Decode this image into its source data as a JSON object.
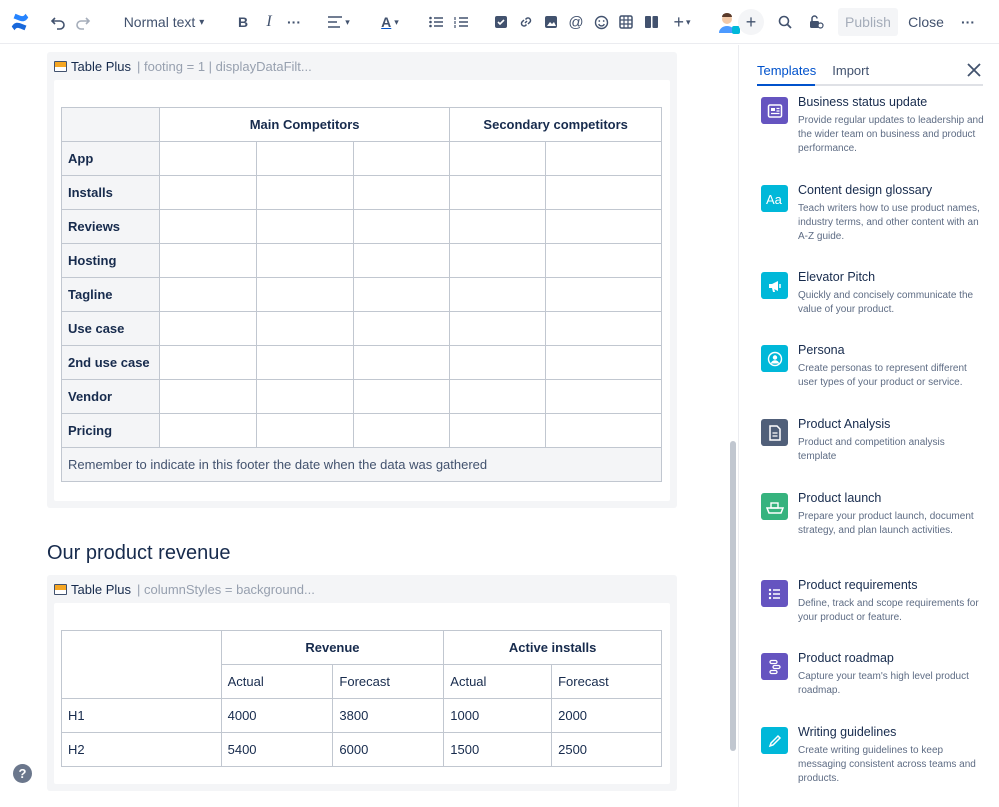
{
  "toolbar": {
    "text_style": "Normal text",
    "publish_label": "Publish",
    "close_label": "Close"
  },
  "macro1": {
    "name": "Table Plus",
    "params": "| footing = 1 | displayDataFilt...",
    "header": {
      "main": "Main Competitors",
      "secondary": "Secondary competitors"
    },
    "rows": [
      "App",
      "Installs",
      "Reviews",
      "Hosting",
      "Tagline",
      "Use case",
      "2nd use case",
      "Vendor",
      "Pricing"
    ],
    "footer": "Remember to indicate in this footer the date when the data was gathered"
  },
  "section_title": "Our product revenue",
  "macro2": {
    "name": "Table Plus",
    "params": "| columnStyles = background...",
    "groups": {
      "revenue": "Revenue",
      "installs": "Active installs"
    },
    "sub": [
      "Actual",
      "Forecast",
      "Actual",
      "Forecast"
    ],
    "rows": [
      {
        "label": "H1",
        "cells": [
          "4000",
          "3800",
          "1000",
          "2000"
        ]
      },
      {
        "label": "H2",
        "cells": [
          "5400",
          "6000",
          "1500",
          "2500"
        ]
      }
    ]
  },
  "panel": {
    "tabs": [
      "Templates",
      "Import"
    ],
    "templates": [
      {
        "title": "Business status update",
        "desc": "Provide regular updates to leadership and the wider team on business and product performance.",
        "icon": "newspaper-icon",
        "color": "#6554c0"
      },
      {
        "title": "Content design glossary",
        "desc": "Teach writers how to use product names, industry terms, and other content with an A-Z guide.",
        "icon": "text-aa-icon",
        "color": "#00b8d9"
      },
      {
        "title": "Elevator Pitch",
        "desc": "Quickly and concisely communicate the value of your product.",
        "icon": "megaphone-icon",
        "color": "#00b8d9"
      },
      {
        "title": "Persona",
        "desc": "Create personas to represent different user types of your product or service.",
        "icon": "person-icon",
        "color": "#00b8d9"
      },
      {
        "title": "Product Analysis",
        "desc": "Product and competition analysis template",
        "icon": "document-icon",
        "color": "#505f79"
      },
      {
        "title": "Product launch",
        "desc": "Prepare your product launch, document strategy, and plan launch activities.",
        "icon": "ship-icon",
        "color": "#36b37e"
      },
      {
        "title": "Product requirements",
        "desc": "Define, track and scope requirements for your product or feature.",
        "icon": "list-icon",
        "color": "#6554c0"
      },
      {
        "title": "Product roadmap",
        "desc": "Capture your team's high level product roadmap.",
        "icon": "roadmap-icon",
        "color": "#6554c0"
      },
      {
        "title": "Writing guidelines",
        "desc": "Create writing guidelines to keep messaging consistent across teams and products.",
        "icon": "pencil-icon",
        "color": "#00b8d9"
      }
    ]
  },
  "help_label": "?"
}
